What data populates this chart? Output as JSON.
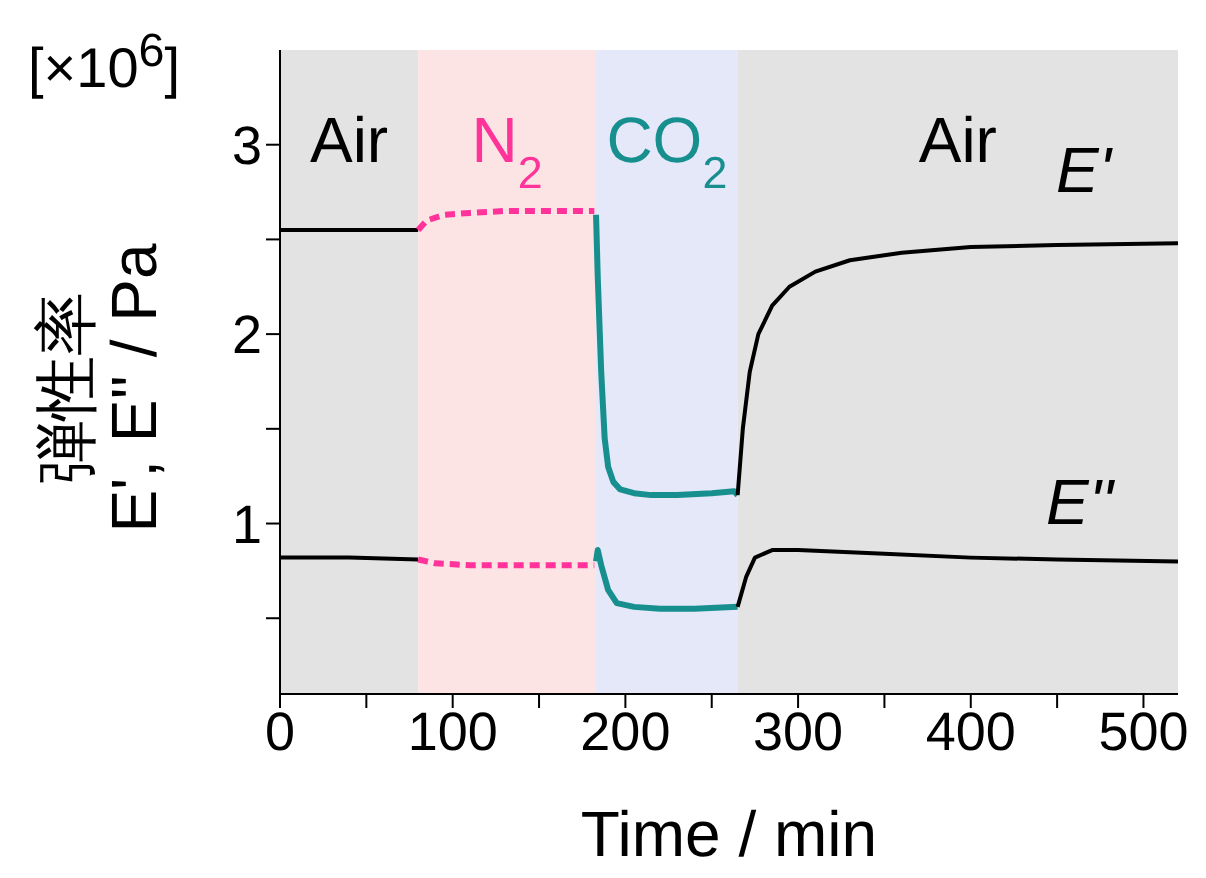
{
  "chart_data": {
    "type": "line",
    "xlabel": "Time / min",
    "ylabel": "弾性率\nE', E'' / Pa",
    "annotations": [
      "[×10$^{6}$]",
      "E'",
      "E''"
    ],
    "xlim": [
      0,
      520
    ],
    "xticks": [
      0,
      {
        "value": 50,
        "label": null
      },
      100,
      {
        "value": 150,
        "label": null
      },
      200,
      {
        "value": 250,
        "label": null
      },
      300,
      {
        "value": 350,
        "label": null
      },
      400,
      {
        "value": 450,
        "label": null
      },
      500
    ],
    "ylim": [
      0.1,
      3.5
    ],
    "yticks": [
      {
        "value": 0.5,
        "label": null
      },
      1,
      {
        "value": 1.5,
        "label": null
      },
      2,
      {
        "value": 2.5,
        "label": null
      },
      3
    ],
    "bands": [
      {
        "axis": "x",
        "from": 0,
        "to": 80,
        "label": "Air",
        "color": "#e3e3e3"
      },
      {
        "axis": "x",
        "from": 80,
        "to": 183,
        "label": "N$_{2}$",
        "color": "#fce4e4"
      },
      {
        "axis": "x",
        "from": 183,
        "to": 265,
        "label": "CO$_{2}$",
        "color": "#e4e8f8"
      },
      {
        "axis": "x",
        "from": 265,
        "to": 520,
        "label": "Air",
        "color": "#e3e3e3"
      }
    ],
    "grid": false,
    "legend": false,
    "marker": "none",
    "series": [
      {
        "color": "#000000",
        "line_style": "solid",
        "x": [
          0,
          40,
          80
        ],
        "values": [
          2.55,
          2.55,
          2.55
        ]
      },
      {
        "color": "#ff3399",
        "line_style": "dashed",
        "x": [
          80,
          85,
          95,
          110,
          130,
          160,
          182
        ],
        "values": [
          2.55,
          2.6,
          2.63,
          2.64,
          2.65,
          2.65,
          2.65
        ]
      },
      {
        "color": "#178f8f",
        "line_style": "solid",
        "x": [
          183,
          184,
          186,
          188,
          190,
          193,
          197,
          205,
          215,
          230,
          250,
          263,
          265
        ],
        "values": [
          2.63,
          2.3,
          1.8,
          1.45,
          1.3,
          1.22,
          1.18,
          1.16,
          1.15,
          1.15,
          1.16,
          1.17,
          1.15
        ]
      },
      {
        "color": "#000000",
        "line_style": "solid",
        "x": [
          265,
          268,
          272,
          277,
          285,
          295,
          310,
          330,
          360,
          400,
          450,
          520
        ],
        "values": [
          1.15,
          1.5,
          1.8,
          2.0,
          2.15,
          2.25,
          2.33,
          2.39,
          2.43,
          2.46,
          2.47,
          2.48
        ]
      },
      {
        "color": "#000000",
        "line_style": "solid",
        "x": [
          0,
          40,
          80
        ],
        "values": [
          0.82,
          0.82,
          0.81
        ]
      },
      {
        "color": "#ff3399",
        "line_style": "dashed",
        "x": [
          80,
          90,
          110,
          140,
          182
        ],
        "values": [
          0.81,
          0.79,
          0.78,
          0.78,
          0.78
        ]
      },
      {
        "color": "#178f8f",
        "line_style": "solid",
        "x": [
          183,
          184,
          186,
          190,
          195,
          205,
          220,
          240,
          265
        ],
        "values": [
          0.8,
          0.86,
          0.78,
          0.65,
          0.58,
          0.56,
          0.55,
          0.55,
          0.56
        ]
      },
      {
        "color": "#000000",
        "line_style": "solid",
        "x": [
          265,
          270,
          275,
          285,
          300,
          350,
          400,
          450,
          520
        ],
        "values": [
          0.56,
          0.72,
          0.82,
          0.86,
          0.86,
          0.84,
          0.82,
          0.81,
          0.8
        ]
      }
    ]
  }
}
